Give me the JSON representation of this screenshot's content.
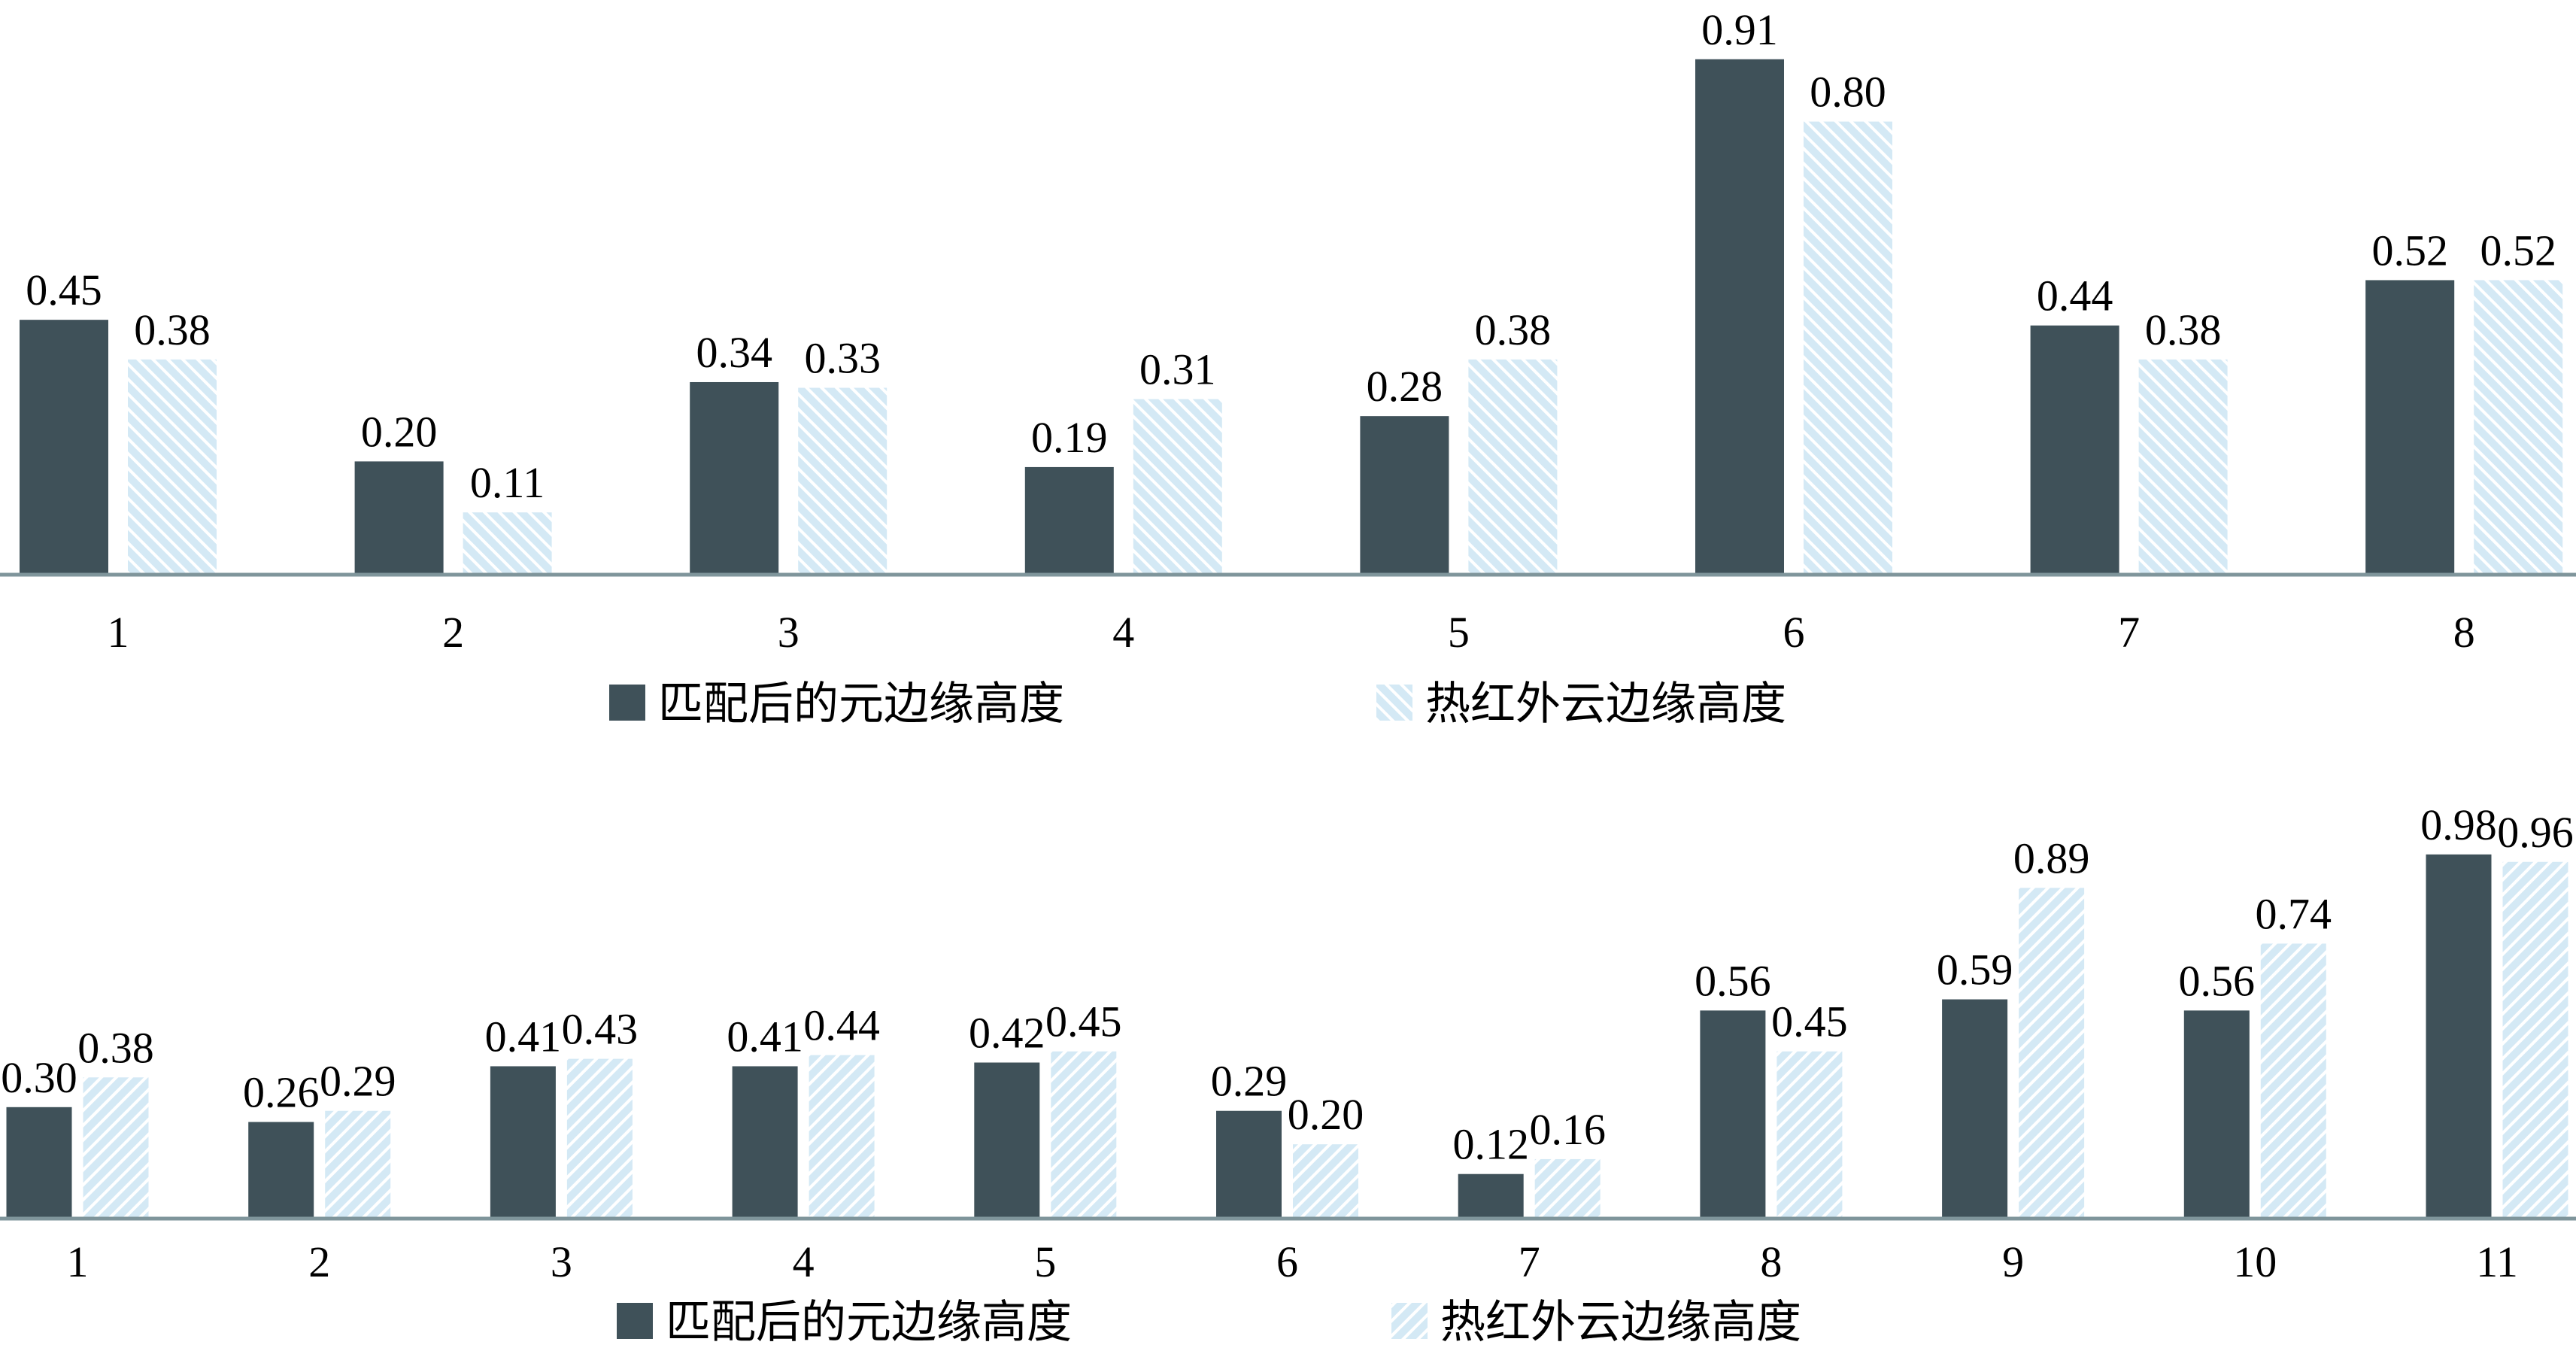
{
  "colors": {
    "series1": "#3f5159",
    "series2": "#d4e9f5",
    "axis": "#7f959b"
  },
  "chart_data": [
    {
      "type": "bar",
      "categories": [
        "1",
        "2",
        "3",
        "4",
        "5",
        "6",
        "7",
        "8"
      ],
      "series": [
        {
          "name": "匹配后的元边缘高度",
          "values": [
            0.45,
            0.2,
            0.34,
            0.19,
            0.28,
            0.91,
            0.44,
            0.52
          ],
          "labels": [
            "0.45",
            "0.20",
            "0.34",
            "0.19",
            "0.28",
            "0.91",
            "0.44",
            "0.52"
          ],
          "fill": "solid"
        },
        {
          "name": "热红外云边缘高度",
          "values": [
            0.38,
            0.11,
            0.33,
            0.31,
            0.38,
            0.8,
            0.38,
            0.52
          ],
          "labels": [
            "0.38",
            "0.11",
            "0.33",
            "0.31",
            "0.38",
            "0.80",
            "0.38",
            "0.52"
          ],
          "fill": "hatched"
        }
      ],
      "ylim": [
        0,
        0.95
      ],
      "grid": false,
      "legend_placement": "bottom"
    },
    {
      "type": "bar",
      "categories": [
        "1",
        "2",
        "3",
        "4",
        "5",
        "6",
        "7",
        "8",
        "9",
        "10",
        "11"
      ],
      "series": [
        {
          "name": "匹配后的元边缘高度",
          "values": [
            0.3,
            0.26,
            0.41,
            0.41,
            0.42,
            0.29,
            0.12,
            0.56,
            0.59,
            0.56,
            0.98
          ],
          "labels": [
            "0.30",
            "0.26",
            "0.41",
            "0.41",
            "0.42",
            "0.29",
            "0.12",
            "0.56",
            "0.59",
            "0.56",
            "0.98"
          ],
          "fill": "solid"
        },
        {
          "name": "热红外云边缘高度",
          "values": [
            0.38,
            0.29,
            0.43,
            0.44,
            0.45,
            0.2,
            0.16,
            0.45,
            0.89,
            0.74,
            0.96
          ],
          "labels": [
            "0.38",
            "0.29",
            "0.43",
            "0.44",
            "0.45",
            "0.20",
            "0.16",
            "0.45",
            "0.89",
            "0.74",
            "0.96"
          ],
          "fill": "hatched"
        }
      ],
      "ylim": [
        0,
        1.0
      ],
      "grid": false,
      "legend_placement": "bottom"
    }
  ]
}
